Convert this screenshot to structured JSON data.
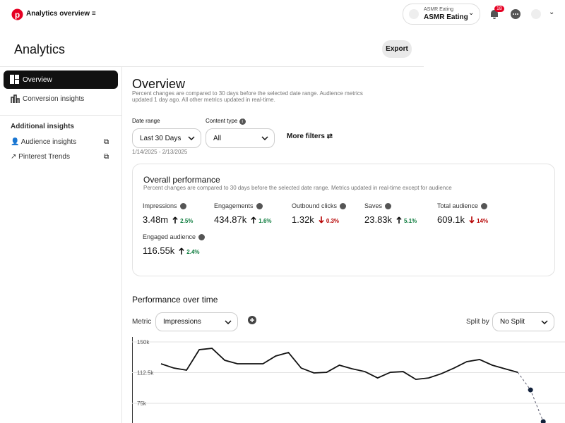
{
  "header": {
    "title": "Analytics overview",
    "account_label": "ASMR Eating",
    "account_name": "ASMR Eating",
    "notification_count": "18"
  },
  "page": {
    "title": "Analytics",
    "export": "Export"
  },
  "sidebar": {
    "items": [
      "Overview",
      "Conversion insights"
    ],
    "section_title": "Additional insights",
    "links": [
      "Audience insights",
      "Pinterest Trends"
    ]
  },
  "overview": {
    "title": "Overview",
    "note": "Percent changes are compared to 30 days before the selected date range. Audience metrics updated 1 day ago. All other metrics updated in real-time.",
    "date_range_label": "Date range",
    "date_range": "Last 30 Days",
    "dates": "1/14/2025 - 2/13/2025",
    "content_type_label": "Content type",
    "content_type": "All",
    "more_filters": "More filters"
  },
  "performance": {
    "title": "Overall performance",
    "note": "Percent changes are compared to 30 days before the selected date range. Metrics updated in real-time except for audience",
    "metrics": [
      {
        "label": "Impressions",
        "value": "3.48m",
        "change": "2.5%",
        "direction": "up"
      },
      {
        "label": "Engagements",
        "value": "434.87k",
        "change": "1.6%",
        "direction": "up"
      },
      {
        "label": "Outbound clicks",
        "value": "1.32k",
        "change": "0.3%",
        "direction": "down"
      },
      {
        "label": "Saves",
        "value": "23.83k",
        "change": "5.1%",
        "direction": "up"
      },
      {
        "label": "Total audience",
        "value": "609.1k",
        "change": "14%",
        "direction": "down"
      },
      {
        "label": "Engaged audience",
        "value": "116.55k",
        "change": "2.4%",
        "direction": "up"
      }
    ]
  },
  "over_time": {
    "title": "Performance over time",
    "metric_label": "Metric",
    "metric": "Impressions",
    "split_label": "Split by",
    "split": "No Split"
  },
  "chart": {
    "type": "line",
    "ylim": [
      51000,
      154300
    ],
    "yticks": [
      {
        "value": 150000,
        "label": "150k"
      },
      {
        "value": 112500,
        "label": "112.5k"
      },
      {
        "value": 75000,
        "label": "75k"
      }
    ],
    "grid": true,
    "series": [
      {
        "color": "#111111",
        "style": "solid",
        "values": [
          123300,
          118100,
          115500,
          140500,
          142200,
          127600,
          123300,
          123300,
          123300,
          132800,
          137100,
          118100,
          112100,
          112900,
          121600,
          117200,
          113800,
          106000,
          112900,
          113800,
          104300,
          106000,
          111200,
          118100,
          125900,
          128500,
          121600,
          117200,
          112900,
          null,
          null
        ]
      },
      {
        "color": "#55556a",
        "style": "dashed",
        "values": [
          null,
          null,
          null,
          null,
          null,
          null,
          null,
          null,
          null,
          null,
          null,
          null,
          null,
          null,
          null,
          null,
          null,
          null,
          null,
          null,
          null,
          null,
          null,
          null,
          null,
          null,
          null,
          null,
          112900,
          91400,
          52600
        ]
      }
    ]
  }
}
